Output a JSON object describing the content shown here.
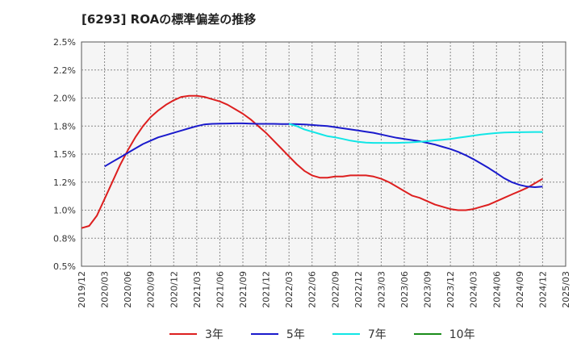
{
  "title": "[6293]  ROAの標準偏差の推移",
  "chart_data": {
    "type": "line",
    "title": "[6293]  ROAの標準偏差の推移",
    "xlabel": "",
    "ylabel": "",
    "ylim": [
      0.5,
      2.5
    ],
    "yticks": [
      "0.5%",
      "0.8%",
      "1.0%",
      "1.2%",
      "1.5%",
      "1.8%",
      "2.0%",
      "2.2%",
      "2.5%"
    ],
    "ytick_values": [
      0.5,
      0.75,
      1.0,
      1.25,
      1.5,
      1.75,
      2.0,
      2.25,
      2.5
    ],
    "x_labels": [
      "2019/12",
      "2020/03",
      "2020/06",
      "2020/09",
      "2020/12",
      "2021/03",
      "2021/06",
      "2021/09",
      "2021/12",
      "2022/03",
      "2022/06",
      "2022/09",
      "2022/12",
      "2023/03",
      "2023/06",
      "2023/09",
      "2023/12",
      "2024/03",
      "2024/06",
      "2024/09",
      "2024/12",
      "2025/03"
    ],
    "grid": true,
    "legend_position": "bottom",
    "series": [
      {
        "name": "3年",
        "color": "#dd1f1f",
        "x": [
          "2019/12",
          "2020/01",
          "2020/02",
          "2020/03",
          "2020/04",
          "2020/05",
          "2020/06",
          "2020/07",
          "2020/08",
          "2020/09",
          "2020/10",
          "2020/11",
          "2020/12",
          "2021/01",
          "2021/02",
          "2021/03",
          "2021/04",
          "2021/05",
          "2021/06",
          "2021/07",
          "2021/08",
          "2021/09",
          "2021/10",
          "2021/11",
          "2021/12",
          "2022/01",
          "2022/02",
          "2022/03",
          "2022/04",
          "2022/05",
          "2022/06",
          "2022/07",
          "2022/08",
          "2022/09",
          "2022/10",
          "2022/11",
          "2022/12",
          "2023/01",
          "2023/02",
          "2023/03",
          "2023/04",
          "2023/05",
          "2023/06",
          "2023/07",
          "2023/08",
          "2023/09",
          "2023/10",
          "2023/11",
          "2023/12",
          "2024/01",
          "2024/02",
          "2024/03",
          "2024/04",
          "2024/05",
          "2024/06",
          "2024/07",
          "2024/08",
          "2024/09",
          "2024/10",
          "2024/11",
          "2024/12"
        ],
        "values": [
          0.84,
          0.86,
          0.95,
          1.1,
          1.25,
          1.4,
          1.53,
          1.65,
          1.75,
          1.83,
          1.89,
          1.94,
          1.98,
          2.01,
          2.02,
          2.02,
          2.01,
          1.99,
          1.97,
          1.94,
          1.9,
          1.86,
          1.81,
          1.75,
          1.69,
          1.62,
          1.55,
          1.48,
          1.41,
          1.35,
          1.31,
          1.29,
          1.29,
          1.3,
          1.3,
          1.31,
          1.31,
          1.31,
          1.3,
          1.28,
          1.25,
          1.21,
          1.17,
          1.13,
          1.11,
          1.08,
          1.05,
          1.03,
          1.01,
          1.0,
          1.0,
          1.01,
          1.03,
          1.05,
          1.08,
          1.11,
          1.14,
          1.17,
          1.2,
          1.24,
          1.28
        ]
      },
      {
        "name": "5年",
        "color": "#1a1acc",
        "x": [
          "2020/03",
          "2020/04",
          "2020/05",
          "2020/06",
          "2020/07",
          "2020/08",
          "2020/09",
          "2020/10",
          "2020/11",
          "2020/12",
          "2021/01",
          "2021/02",
          "2021/03",
          "2021/04",
          "2021/05",
          "2021/06",
          "2021/07",
          "2021/08",
          "2021/09",
          "2021/10",
          "2021/11",
          "2021/12",
          "2022/01",
          "2022/02",
          "2022/03",
          "2022/04",
          "2022/05",
          "2022/06",
          "2022/07",
          "2022/08",
          "2022/09",
          "2022/10",
          "2022/11",
          "2022/12",
          "2023/01",
          "2023/02",
          "2023/03",
          "2023/04",
          "2023/05",
          "2023/06",
          "2023/07",
          "2023/08",
          "2023/09",
          "2023/10",
          "2023/11",
          "2023/12",
          "2024/01",
          "2024/02",
          "2024/03",
          "2024/04",
          "2024/05",
          "2024/06",
          "2024/07",
          "2024/08",
          "2024/09",
          "2024/10",
          "2024/11",
          "2024/12"
        ],
        "values": [
          1.39,
          1.43,
          1.47,
          1.51,
          1.55,
          1.59,
          1.62,
          1.65,
          1.67,
          1.69,
          1.71,
          1.73,
          1.75,
          1.765,
          1.77,
          1.772,
          1.773,
          1.774,
          1.774,
          1.772,
          1.77,
          1.77,
          1.77,
          1.768,
          1.768,
          1.767,
          1.765,
          1.76,
          1.755,
          1.75,
          1.74,
          1.73,
          1.72,
          1.71,
          1.7,
          1.69,
          1.675,
          1.66,
          1.645,
          1.635,
          1.625,
          1.615,
          1.6,
          1.585,
          1.565,
          1.545,
          1.52,
          1.49,
          1.455,
          1.415,
          1.375,
          1.33,
          1.285,
          1.25,
          1.225,
          1.21,
          1.205,
          1.21
        ]
      },
      {
        "name": "7年",
        "color": "#11e6e6",
        "x": [
          "2022/03",
          "2022/04",
          "2022/05",
          "2022/06",
          "2022/07",
          "2022/08",
          "2022/09",
          "2022/10",
          "2022/11",
          "2022/12",
          "2023/01",
          "2023/02",
          "2023/03",
          "2023/04",
          "2023/05",
          "2023/06",
          "2023/07",
          "2023/08",
          "2023/09",
          "2023/10",
          "2023/11",
          "2023/12",
          "2024/01",
          "2024/02",
          "2024/03",
          "2024/04",
          "2024/05",
          "2024/06",
          "2024/07",
          "2024/08",
          "2024/09",
          "2024/10",
          "2024/11",
          "2024/12"
        ],
        "values": [
          1.77,
          1.75,
          1.72,
          1.7,
          1.68,
          1.66,
          1.65,
          1.635,
          1.62,
          1.61,
          1.603,
          1.6,
          1.6,
          1.6,
          1.6,
          1.602,
          1.605,
          1.61,
          1.615,
          1.622,
          1.628,
          1.635,
          1.645,
          1.655,
          1.665,
          1.675,
          1.682,
          1.688,
          1.692,
          1.694,
          1.695,
          1.696,
          1.697,
          1.697
        ]
      },
      {
        "name": "10年",
        "color": "#1a8c1a",
        "x": [],
        "values": []
      }
    ]
  }
}
